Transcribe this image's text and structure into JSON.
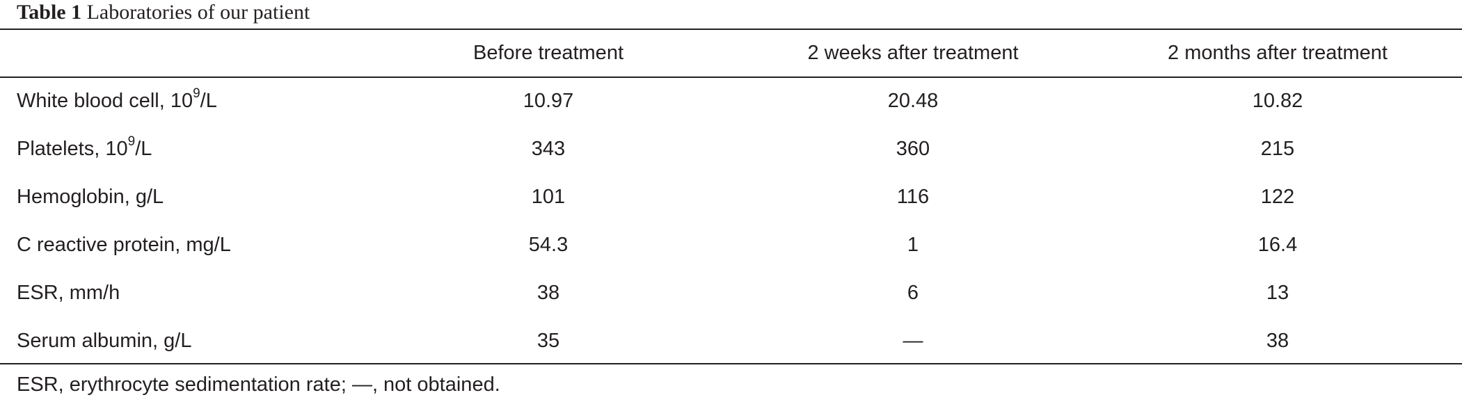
{
  "caption": {
    "label": "Table 1",
    "title": "Laboratories of our patient"
  },
  "table": {
    "columns": [
      "",
      "Before treatment",
      "2 weeks after treatment",
      "2 months after treatment"
    ],
    "rows": [
      {
        "label_main": "White blood cell, 10",
        "label_sup": "9",
        "label_tail": "/L",
        "values": [
          "10.97",
          "20.48",
          "10.82"
        ]
      },
      {
        "label_main": "Platelets, 10",
        "label_sup": "9",
        "label_tail": "/L",
        "values": [
          "343",
          "360",
          "215"
        ]
      },
      {
        "label_main": "Hemoglobin, g/L",
        "label_sup": "",
        "label_tail": "",
        "values": [
          "101",
          "116",
          "122"
        ]
      },
      {
        "label_main": "C reactive protein, mg/L",
        "label_sup": "",
        "label_tail": "",
        "values": [
          "54.3",
          "1",
          "16.4"
        ]
      },
      {
        "label_main": "ESR, mm/h",
        "label_sup": "",
        "label_tail": "",
        "values": [
          "38",
          "6",
          "13"
        ]
      },
      {
        "label_main": "Serum albumin, g/L",
        "label_sup": "",
        "label_tail": "",
        "values": [
          "35",
          "—",
          "38"
        ]
      }
    ]
  },
  "footnote": "ESR, erythrocyte sedimentation rate; —, not obtained."
}
